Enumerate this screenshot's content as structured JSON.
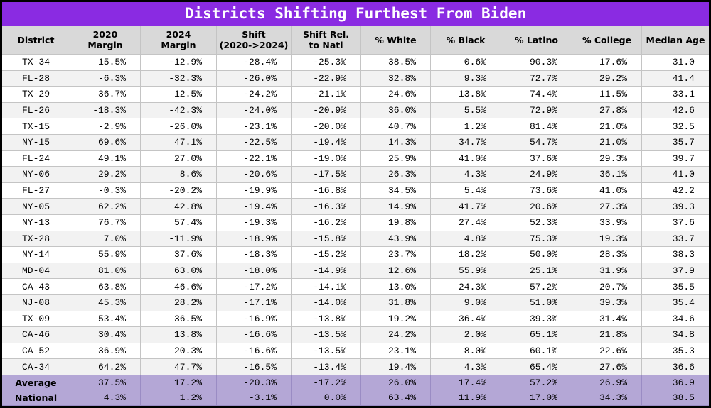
{
  "title": "Districts Shifting Furthest From Biden",
  "header": [
    [
      "District"
    ],
    [
      "2020",
      "Margin"
    ],
    [
      "2024",
      "Margin"
    ],
    [
      "Shift",
      "(2020->2024)"
    ],
    [
      "Shift Rel.",
      "to Natl"
    ],
    [
      "% White"
    ],
    [
      "% Black"
    ],
    [
      "% Latino"
    ],
    [
      "% College"
    ],
    [
      "Median Age"
    ]
  ],
  "rows": [
    [
      "TX-34",
      "15.5%",
      "-12.9%",
      "-28.4%",
      "-25.3%",
      "38.5%",
      "0.6%",
      "90.3%",
      "17.6%",
      "31.0"
    ],
    [
      "FL-28",
      "-6.3%",
      "-32.3%",
      "-26.0%",
      "-22.9%",
      "32.8%",
      "9.3%",
      "72.7%",
      "29.2%",
      "41.4"
    ],
    [
      "TX-29",
      "36.7%",
      "12.5%",
      "-24.2%",
      "-21.1%",
      "24.6%",
      "13.8%",
      "74.4%",
      "11.5%",
      "33.1"
    ],
    [
      "FL-26",
      "-18.3%",
      "-42.3%",
      "-24.0%",
      "-20.9%",
      "36.0%",
      "5.5%",
      "72.9%",
      "27.8%",
      "42.6"
    ],
    [
      "TX-15",
      "-2.9%",
      "-26.0%",
      "-23.1%",
      "-20.0%",
      "40.7%",
      "1.2%",
      "81.4%",
      "21.0%",
      "32.5"
    ],
    [
      "NY-15",
      "69.6%",
      "47.1%",
      "-22.5%",
      "-19.4%",
      "14.3%",
      "34.7%",
      "54.7%",
      "21.0%",
      "35.7"
    ],
    [
      "FL-24",
      "49.1%",
      "27.0%",
      "-22.1%",
      "-19.0%",
      "25.9%",
      "41.0%",
      "37.6%",
      "29.3%",
      "39.7"
    ],
    [
      "NY-06",
      "29.2%",
      "8.6%",
      "-20.6%",
      "-17.5%",
      "26.3%",
      "4.3%",
      "24.9%",
      "36.1%",
      "41.0"
    ],
    [
      "FL-27",
      "-0.3%",
      "-20.2%",
      "-19.9%",
      "-16.8%",
      "34.5%",
      "5.4%",
      "73.6%",
      "41.0%",
      "42.2"
    ],
    [
      "NY-05",
      "62.2%",
      "42.8%",
      "-19.4%",
      "-16.3%",
      "14.9%",
      "41.7%",
      "20.6%",
      "27.3%",
      "39.3"
    ],
    [
      "NY-13",
      "76.7%",
      "57.4%",
      "-19.3%",
      "-16.2%",
      "19.8%",
      "27.4%",
      "52.3%",
      "33.9%",
      "37.6"
    ],
    [
      "TX-28",
      "7.0%",
      "-11.9%",
      "-18.9%",
      "-15.8%",
      "43.9%",
      "4.8%",
      "75.3%",
      "19.3%",
      "33.7"
    ],
    [
      "NY-14",
      "55.9%",
      "37.6%",
      "-18.3%",
      "-15.2%",
      "23.7%",
      "18.2%",
      "50.0%",
      "28.3%",
      "38.3"
    ],
    [
      "MD-04",
      "81.0%",
      "63.0%",
      "-18.0%",
      "-14.9%",
      "12.6%",
      "55.9%",
      "25.1%",
      "31.9%",
      "37.9"
    ],
    [
      "CA-43",
      "63.8%",
      "46.6%",
      "-17.2%",
      "-14.1%",
      "13.0%",
      "24.3%",
      "57.2%",
      "20.7%",
      "35.5"
    ],
    [
      "NJ-08",
      "45.3%",
      "28.2%",
      "-17.1%",
      "-14.0%",
      "31.8%",
      "9.0%",
      "51.0%",
      "39.3%",
      "35.4"
    ],
    [
      "TX-09",
      "53.4%",
      "36.5%",
      "-16.9%",
      "-13.8%",
      "19.2%",
      "36.4%",
      "39.3%",
      "31.4%",
      "34.6"
    ],
    [
      "CA-46",
      "30.4%",
      "13.8%",
      "-16.6%",
      "-13.5%",
      "24.2%",
      "2.0%",
      "65.1%",
      "21.8%",
      "34.8"
    ],
    [
      "CA-52",
      "36.9%",
      "20.3%",
      "-16.6%",
      "-13.5%",
      "23.1%",
      "8.0%",
      "60.1%",
      "22.6%",
      "35.3"
    ],
    [
      "CA-34",
      "64.2%",
      "47.7%",
      "-16.5%",
      "-13.4%",
      "19.4%",
      "4.3%",
      "65.4%",
      "27.6%",
      "36.6"
    ]
  ],
  "footer": [
    [
      "Average",
      "37.5%",
      "17.2%",
      "-20.3%",
      "-17.2%",
      "26.0%",
      "17.4%",
      "57.2%",
      "26.9%",
      "36.9"
    ],
    [
      "National",
      "4.3%",
      "1.2%",
      "-3.1%",
      "0.0%",
      "63.4%",
      "11.9%",
      "17.0%",
      "34.3%",
      "38.5"
    ]
  ]
}
